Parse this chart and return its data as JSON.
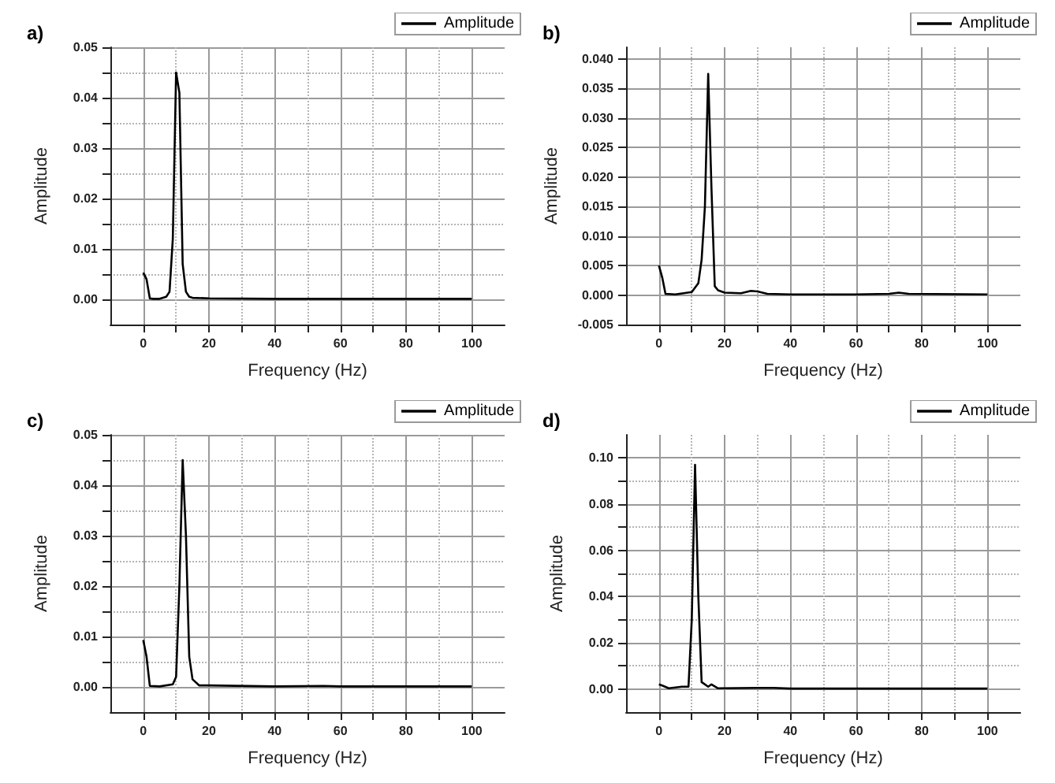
{
  "chart_data": [
    {
      "type": "line",
      "title": "a)",
      "xlabel": "Frequency (Hz)",
      "ylabel": "Amplitude",
      "legend": "top right",
      "grid": true,
      "xlim": [
        -10,
        110
      ],
      "ylim": [
        -0.005,
        0.05
      ],
      "xticks": [
        0,
        {
          "value": 10,
          "label": null
        },
        20,
        {
          "value": 30,
          "label": null
        },
        40,
        {
          "value": 50,
          "label": null
        },
        60,
        {
          "value": 70,
          "label": null
        },
        80,
        {
          "value": 90,
          "label": null
        },
        100
      ],
      "yticks": [
        {
          "value": 0,
          "label": "0.00"
        },
        {
          "value": 0.005,
          "label": null
        },
        {
          "value": 0.01,
          "label": "0.01"
        },
        {
          "value": 0.015,
          "label": null
        },
        {
          "value": 0.02,
          "label": "0.02"
        },
        {
          "value": 0.025,
          "label": null
        },
        {
          "value": 0.03,
          "label": "0.03"
        },
        {
          "value": 0.035,
          "label": null
        },
        {
          "value": 0.04,
          "label": "0.04"
        },
        {
          "value": 0.045,
          "label": null
        },
        {
          "value": 0.05,
          "label": "0.05"
        }
      ],
      "series": [
        {
          "name": "Amplitude",
          "color": "#000000",
          "x": [
            0,
            1,
            2,
            3,
            5,
            7,
            8,
            9,
            10,
            11,
            12,
            13,
            14,
            15,
            20,
            40,
            60,
            80,
            100
          ],
          "values": [
            0.0053,
            0.004,
            0.0002,
            0.0001,
            0.0001,
            0.0005,
            0.0015,
            0.012,
            0.045,
            0.041,
            0.007,
            0.0015,
            0.0005,
            0.0003,
            0.0002,
            0.0001,
            0.0001,
            0.0001,
            0.0001
          ]
        }
      ]
    },
    {
      "type": "line",
      "title": "b)",
      "xlabel": "Frequency (Hz)",
      "ylabel": "Amplitude",
      "legend": "top right",
      "grid": true,
      "xlim": [
        -10,
        110
      ],
      "ylim": [
        -0.005,
        0.042
      ],
      "xticks": [
        0,
        {
          "value": 10,
          "label": null
        },
        20,
        {
          "value": 30,
          "label": null
        },
        40,
        {
          "value": 50,
          "label": null
        },
        60,
        {
          "value": 70,
          "label": null
        },
        80,
        {
          "value": 90,
          "label": null
        },
        100
      ],
      "yticks": [
        {
          "value": -0.005,
          "label": "-0.005"
        },
        {
          "value": 0,
          "label": "0.000"
        },
        {
          "value": 0.005,
          "label": "0.005"
        },
        {
          "value": 0.01,
          "label": "0.010"
        },
        {
          "value": 0.015,
          "label": "0.015"
        },
        {
          "value": 0.02,
          "label": "0.020"
        },
        {
          "value": 0.025,
          "label": "0.025"
        },
        {
          "value": 0.03,
          "label": "0.030"
        },
        {
          "value": 0.035,
          "label": "0.035"
        },
        {
          "value": 0.04,
          "label": "0.040"
        }
      ],
      "series": [
        {
          "name": "Amplitude",
          "color": "#000000",
          "x": [
            0,
            1,
            2,
            5,
            10,
            12,
            13,
            14,
            15,
            16,
            17,
            18,
            20,
            25,
            28,
            30,
            33,
            40,
            60,
            70,
            73,
            76,
            100
          ],
          "values": [
            0.005,
            0.003,
            0.0002,
            0.0001,
            0.0005,
            0.002,
            0.006,
            0.015,
            0.0375,
            0.018,
            0.0015,
            0.0008,
            0.0004,
            0.0003,
            0.0007,
            0.0006,
            0.0002,
            0.0001,
            0.0001,
            0.0002,
            0.0004,
            0.0002,
            0.0001
          ]
        }
      ]
    },
    {
      "type": "line",
      "title": "c)",
      "xlabel": "Frequency (Hz)",
      "ylabel": "Amplitude",
      "legend": "top right",
      "grid": true,
      "xlim": [
        -10,
        110
      ],
      "ylim": [
        -0.005,
        0.05
      ],
      "xticks": [
        0,
        {
          "value": 10,
          "label": null
        },
        20,
        {
          "value": 30,
          "label": null
        },
        40,
        {
          "value": 50,
          "label": null
        },
        60,
        {
          "value": 70,
          "label": null
        },
        80,
        {
          "value": 90,
          "label": null
        },
        100
      ],
      "yticks": [
        {
          "value": 0,
          "label": "0.00"
        },
        {
          "value": 0.005,
          "label": null
        },
        {
          "value": 0.01,
          "label": "0.01"
        },
        {
          "value": 0.015,
          "label": null
        },
        {
          "value": 0.02,
          "label": "0.02"
        },
        {
          "value": 0.025,
          "label": null
        },
        {
          "value": 0.03,
          "label": "0.03"
        },
        {
          "value": 0.035,
          "label": null
        },
        {
          "value": 0.04,
          "label": "0.04"
        },
        {
          "value": 0.045,
          "label": null
        },
        {
          "value": 0.05,
          "label": "0.05"
        }
      ],
      "series": [
        {
          "name": "Amplitude",
          "color": "#000000",
          "x": [
            0,
            1,
            2,
            5,
            9,
            10,
            11,
            12,
            13,
            14,
            15,
            17,
            20,
            40,
            55,
            60,
            100
          ],
          "values": [
            0.0093,
            0.006,
            0.0002,
            0.0001,
            0.0005,
            0.002,
            0.02,
            0.045,
            0.03,
            0.006,
            0.0015,
            0.0003,
            0.0003,
            0.0001,
            0.0002,
            0.0001,
            0.0001
          ]
        }
      ]
    },
    {
      "type": "line",
      "title": "d)",
      "xlabel": "Frequency (Hz)",
      "ylabel": "Amplitude",
      "legend": "top right",
      "grid": true,
      "xlim": [
        -10,
        110
      ],
      "ylim": [
        -0.01,
        0.11
      ],
      "xticks": [
        0,
        {
          "value": 10,
          "label": null
        },
        20,
        {
          "value": 30,
          "label": null
        },
        40,
        {
          "value": 50,
          "label": null
        },
        60,
        {
          "value": 70,
          "label": null
        },
        80,
        {
          "value": 90,
          "label": null
        },
        100
      ],
      "yticks": [
        {
          "value": 0,
          "label": "0.00"
        },
        {
          "value": 0.01,
          "label": null
        },
        {
          "value": 0.02,
          "label": "0.02"
        },
        {
          "value": 0.03,
          "label": null
        },
        {
          "value": 0.04,
          "label": "0.04"
        },
        {
          "value": 0.05,
          "label": null
        },
        {
          "value": 0.06,
          "label": "0.06"
        },
        {
          "value": 0.07,
          "label": null
        },
        {
          "value": 0.08,
          "label": "0.08"
        },
        {
          "value": 0.09,
          "label": null
        },
        {
          "value": 0.1,
          "label": "0.10"
        }
      ],
      "series": [
        {
          "name": "Amplitude",
          "color": "#000000",
          "x": [
            0,
            1,
            3,
            7,
            9,
            10,
            11,
            12,
            13,
            15,
            16,
            18,
            30,
            35,
            40,
            100
          ],
          "values": [
            0.002,
            0.0015,
            0.0003,
            0.001,
            0.001,
            0.03,
            0.097,
            0.04,
            0.003,
            0.001,
            0.002,
            0.0003,
            0.0005,
            0.0005,
            0.0002,
            0.0002
          ]
        }
      ]
    }
  ]
}
